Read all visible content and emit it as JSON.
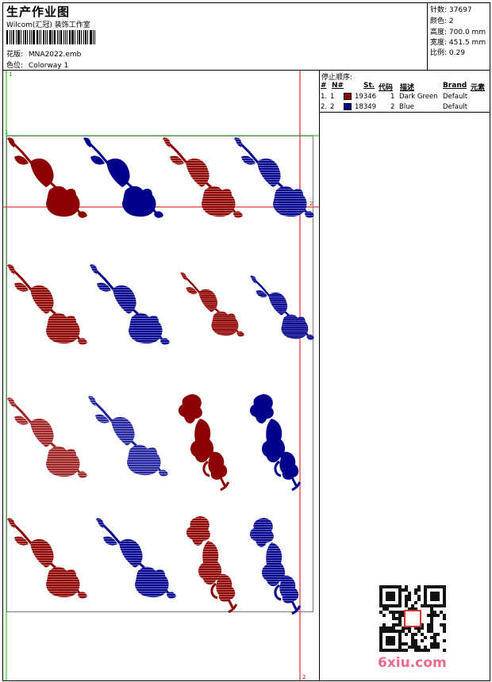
{
  "header": {
    "title": "生产作业图",
    "studio": "Wilcom(汇冠) 装饰工作室",
    "design_label": "花版:",
    "design_value": "MNA2022.emb",
    "colorway_label": "色位:",
    "colorway_value": "Colorway 1"
  },
  "stats": [
    {
      "label": "针数:",
      "value": "37697"
    },
    {
      "label": "颜色:",
      "value": "2"
    },
    {
      "label": "高度:",
      "value": "700.0 mm"
    },
    {
      "label": "宽度:",
      "value": "451.5 mm"
    },
    {
      "label": "比例:",
      "value": "0.29"
    }
  ],
  "stop_sequence": {
    "title": "停止顺序:",
    "headers": [
      "#",
      "N#",
      "St.",
      "代码",
      "描述",
      "Brand",
      "元素"
    ],
    "rows": [
      {
        "num": "1.",
        "needle": "1",
        "color": "#8b0000",
        "stitches": "19346",
        "code": "1",
        "description": "Dark Green",
        "brand": "Default"
      },
      {
        "num": "2.",
        "needle": "2",
        "color": "#00008b",
        "stitches": "18349",
        "code": "2",
        "description": "Blue",
        "brand": "Default"
      }
    ]
  },
  "markers": {
    "top_left": "1",
    "row_left": "1",
    "right_mid": "2",
    "right_bottom": "2"
  },
  "watermark": {
    "text": "6xiu.com"
  },
  "colors": {
    "red": "#8b0000",
    "blue": "#00008b",
    "guide_green": "#00cc00",
    "guide_red": "#e00000"
  }
}
